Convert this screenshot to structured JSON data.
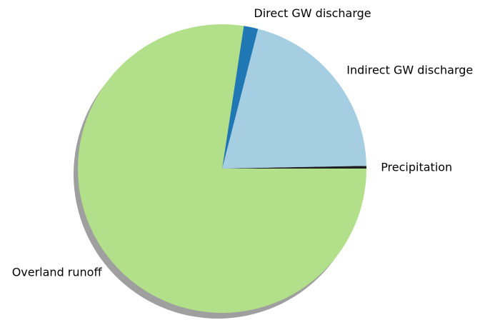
{
  "chart_data": {
    "type": "pie",
    "title": "",
    "shadow": true,
    "start_angle_deg": 0,
    "direction": "counterclockwise",
    "slices": [
      {
        "label": "Precipitation",
        "value": 0.3,
        "color": "#1f1f1f"
      },
      {
        "label": "Indirect GW discharge",
        "value": 20.7,
        "color": "#a6cee3"
      },
      {
        "label": "Direct GW discharge",
        "value": 1.6,
        "color": "#1f78b4"
      },
      {
        "label": "Overland runoff",
        "value": 77.4,
        "color": "#b2df8a"
      }
    ]
  }
}
